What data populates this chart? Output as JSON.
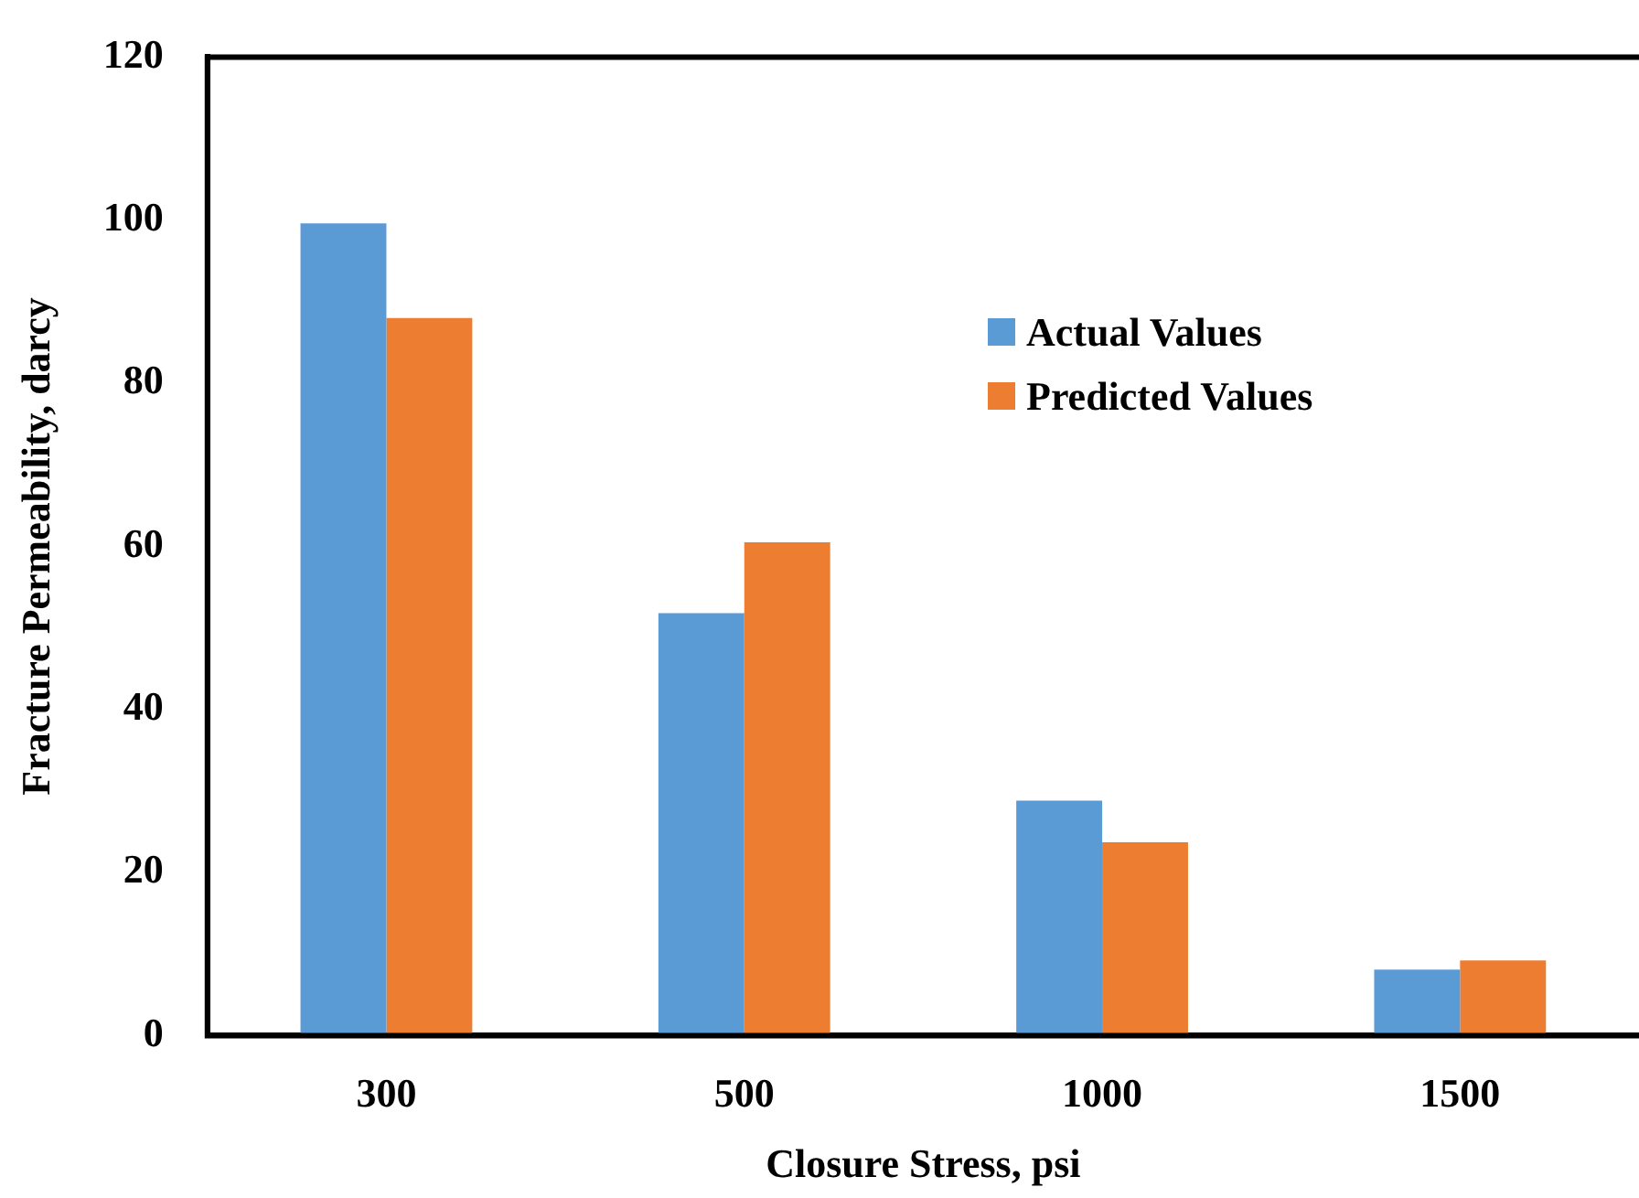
{
  "chart_data": {
    "type": "bar",
    "xlabel": "Closure Stress, psi",
    "ylabel": "Fracture Permeability, darcy",
    "categories": [
      "300",
      "500",
      "1000",
      "1500"
    ],
    "series": [
      {
        "name": "Actual Values",
        "color": "#5b9bd5",
        "values": [
          99.6,
          51.8,
          28.8,
          8.1
        ]
      },
      {
        "name": "Predicted Values",
        "color": "#ed7d31",
        "values": [
          88.0,
          60.5,
          23.7,
          9.2
        ]
      }
    ],
    "ylim": [
      0,
      120
    ],
    "yticks": [
      0,
      20,
      40,
      60,
      80,
      100,
      120
    ],
    "grid": false,
    "legend": "top right"
  }
}
